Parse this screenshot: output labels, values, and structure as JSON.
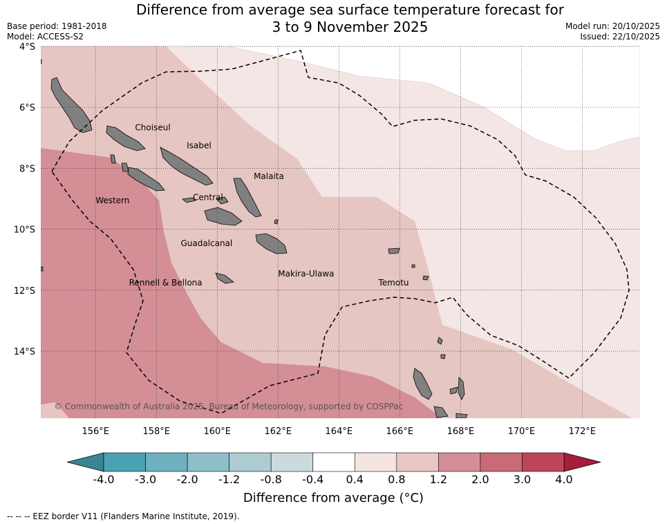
{
  "title": {
    "line1": "Difference from average sea surface temperature forecast for",
    "line2": "3 to 9 November 2025"
  },
  "meta_left": {
    "base_period": "Base period: 1981-2018",
    "model": "Model: ACCESS-S2"
  },
  "meta_right": {
    "model_run": "Model run: 20/10/2025",
    "issued": "Issued: 22/10/2025"
  },
  "map": {
    "lon_range": [
      154.2,
      173.9
    ],
    "lat_range": [
      -16.2,
      -4.0
    ],
    "lat_ticks": [
      {
        "value": -4,
        "label": "4°S"
      },
      {
        "value": -6,
        "label": "6°S"
      },
      {
        "value": -8,
        "label": "8°S"
      },
      {
        "value": -10,
        "label": "10°S"
      },
      {
        "value": -12,
        "label": "12°S"
      },
      {
        "value": -14,
        "label": "14°S"
      }
    ],
    "lon_ticks": [
      {
        "value": 156,
        "label": "156°E"
      },
      {
        "value": 158,
        "label": "158°E"
      },
      {
        "value": 160,
        "label": "160°E"
      },
      {
        "value": 162,
        "label": "162°E"
      },
      {
        "value": 164,
        "label": "164°E"
      },
      {
        "value": 166,
        "label": "166°E"
      },
      {
        "value": 168,
        "label": "168°E"
      },
      {
        "value": 170,
        "label": "170°E"
      },
      {
        "value": 172,
        "label": "172°E"
      }
    ],
    "places": [
      {
        "name": "Choiseul",
        "lon": 157.3,
        "lat": -6.75
      },
      {
        "name": "Isabel",
        "lon": 159.0,
        "lat": -7.35
      },
      {
        "name": "Malaita",
        "lon": 161.2,
        "lat": -8.35
      },
      {
        "name": "Western",
        "lon": 156.0,
        "lat": -9.15
      },
      {
        "name": "Central",
        "lon": 159.2,
        "lat": -9.05
      },
      {
        "name": "Guadalcanal",
        "lon": 158.8,
        "lat": -10.55
      },
      {
        "name": "Makira-Ulawa",
        "lon": 162.0,
        "lat": -11.55
      },
      {
        "name": "Rennell & Bellona",
        "lon": 157.1,
        "lat": -11.85
      },
      {
        "name": "Temotu",
        "lon": 165.3,
        "lat": -11.85
      }
    ],
    "credit": "© Commonwealth of Australia 2025, Bureau of Meteorology, supported by COSPPac",
    "colors": {
      "land": "#808080",
      "band_0.4_0.8": "#f3e6e4",
      "band_0.8_1.2": "#e6c6c2",
      "band_1.2_2.0": "#d48e96",
      "band_2.0_3.0": "#c96a76",
      "ocean_none": "#ffffff"
    }
  },
  "colorbar": {
    "title": "Difference from average (°C)",
    "tick_labels": [
      "-4.0",
      "-3.0",
      "-2.0",
      "-1.2",
      "-0.8",
      "-0.4",
      "0.4",
      "0.8",
      "1.2",
      "2.0",
      "3.0",
      "4.0"
    ],
    "bins": [
      "#4aa1b2",
      "#6eb0bf",
      "#8dbfc9",
      "#acccd2",
      "#cbdadd",
      "#ffffff",
      "#f4e5e3",
      "#e8c6c3",
      "#d48e98",
      "#c86a77",
      "#bd4558"
    ],
    "under_color": "#3a8594",
    "over_color": "#a81c3c"
  },
  "footer": "--  --  -- EEZ border V11 (Flanders Marine Institute, 2019)."
}
